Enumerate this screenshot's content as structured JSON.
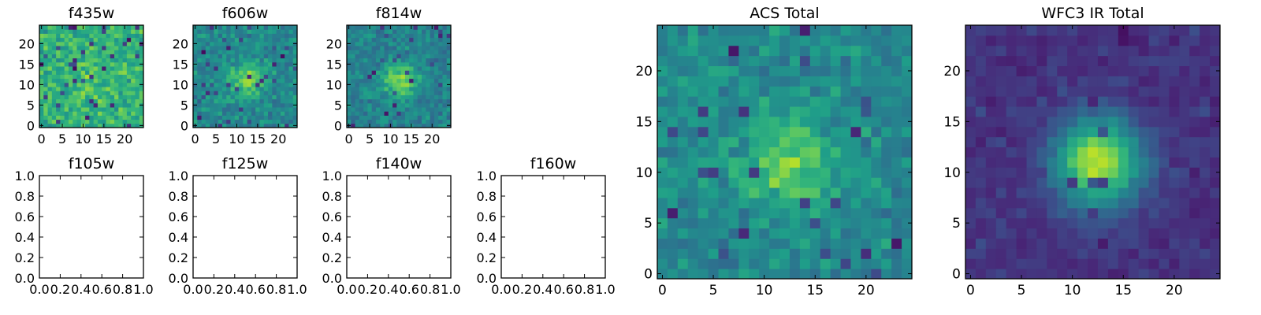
{
  "chart_data": [
    {
      "type": "heatmap",
      "title": "f435w",
      "xlim": [
        -0.5,
        24.5
      ],
      "ylim": [
        -0.5,
        24.5
      ],
      "xticks": [
        "0",
        "5",
        "10",
        "15",
        "20"
      ],
      "yticks": [
        "0",
        "5",
        "10",
        "15",
        "20"
      ],
      "colormap": "viridis",
      "grid_size": [
        25,
        25
      ],
      "blob_strength": 0.1,
      "noise_seed": 11
    },
    {
      "type": "heatmap",
      "title": "f606w",
      "xlim": [
        -0.5,
        24.5
      ],
      "ylim": [
        -0.5,
        24.5
      ],
      "xticks": [
        "0",
        "5",
        "10",
        "15",
        "20"
      ],
      "yticks": [
        "0",
        "5",
        "10",
        "15",
        "20"
      ],
      "colormap": "viridis",
      "grid_size": [
        25,
        25
      ],
      "blob_strength": 0.35,
      "noise_seed": 23
    },
    {
      "type": "heatmap",
      "title": "f814w",
      "xlim": [
        -0.5,
        24.5
      ],
      "ylim": [
        -0.5,
        24.5
      ],
      "xticks": [
        "0",
        "5",
        "10",
        "15",
        "20"
      ],
      "yticks": [
        "0",
        "5",
        "10",
        "15",
        "20"
      ],
      "colormap": "viridis",
      "grid_size": [
        25,
        25
      ],
      "blob_strength": 0.4,
      "noise_seed": 37
    },
    {
      "type": "empty",
      "title": "f105w",
      "xlim": [
        0,
        1
      ],
      "ylim": [
        0,
        1
      ],
      "xticks": [
        "0.0",
        "0.2",
        "0.4",
        "0.6",
        "0.8",
        "1.0"
      ],
      "yticks": [
        "0.0",
        "0.2",
        "0.4",
        "0.6",
        "0.8",
        "1.0"
      ]
    },
    {
      "type": "empty",
      "title": "f125w",
      "xlim": [
        0,
        1
      ],
      "ylim": [
        0,
        1
      ],
      "xticks": [
        "0.0",
        "0.2",
        "0.4",
        "0.6",
        "0.8",
        "1.0"
      ],
      "yticks": [
        "0.0",
        "0.2",
        "0.4",
        "0.6",
        "0.8",
        "1.0"
      ]
    },
    {
      "type": "empty",
      "title": "f140w",
      "xlim": [
        0,
        1
      ],
      "ylim": [
        0,
        1
      ],
      "xticks": [
        "0.0",
        "0.2",
        "0.4",
        "0.6",
        "0.8",
        "1.0"
      ],
      "yticks": [
        "0.0",
        "0.2",
        "0.4",
        "0.6",
        "0.8",
        "1.0"
      ]
    },
    {
      "type": "empty",
      "title": "f160w",
      "xlim": [
        0,
        1
      ],
      "ylim": [
        0,
        1
      ],
      "xticks": [
        "0.0",
        "0.2",
        "0.4",
        "0.6",
        "0.8",
        "1.0"
      ],
      "yticks": [
        "0.0",
        "0.2",
        "0.4",
        "0.6",
        "0.8",
        "1.0"
      ]
    },
    {
      "type": "heatmap",
      "title": "ACS Total",
      "xlim": [
        -0.5,
        24.5
      ],
      "ylim": [
        -0.5,
        24.5
      ],
      "xticks": [
        "0",
        "5",
        "10",
        "15",
        "20"
      ],
      "yticks": [
        "0",
        "5",
        "10",
        "15",
        "20"
      ],
      "colormap": "viridis",
      "grid_size": [
        25,
        25
      ],
      "blob_strength": 0.35,
      "noise_seed": 51
    },
    {
      "type": "heatmap",
      "title": "WFC3 IR Total",
      "xlim": [
        -0.5,
        24.5
      ],
      "ylim": [
        -0.5,
        24.5
      ],
      "xticks": [
        "0",
        "5",
        "10",
        "15",
        "20"
      ],
      "yticks": [
        "0",
        "5",
        "10",
        "15",
        "20"
      ],
      "colormap": "viridis",
      "grid_size": [
        25,
        25
      ],
      "blob_strength": 0.85,
      "noise_seed": 73
    }
  ]
}
